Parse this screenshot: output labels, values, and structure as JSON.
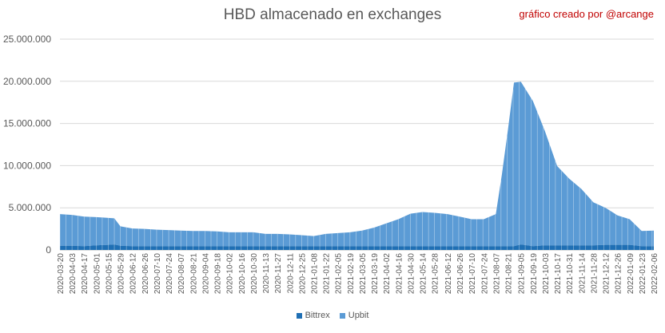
{
  "chart_data": {
    "type": "area",
    "stacked": true,
    "title": "HBD almacenado en exchanges",
    "watermark": "gráfico creado por @arcange",
    "ylim": [
      0,
      25000000
    ],
    "y_ticks": [
      "0",
      "5.000.000",
      "10.000.000",
      "15.000.000",
      "20.000.000",
      "25.000.000"
    ],
    "y_tick_values": [
      0,
      5000000,
      10000000,
      15000000,
      20000000,
      25000000
    ],
    "grid": true,
    "legend_position": "bottom",
    "x_tick_labels": [
      "2020-03-20",
      "2020-04-03",
      "2020-04-17",
      "2020-05-01",
      "2020-05-15",
      "2020-05-29",
      "2020-06-12",
      "2020-06-26",
      "2020-07-10",
      "2020-07-24",
      "2020-08-07",
      "2020-08-21",
      "2020-09-04",
      "2020-09-18",
      "2020-10-02",
      "2020-10-16",
      "2020-10-30",
      "2020-11-13",
      "2020-11-27",
      "2020-12-11",
      "2020-12-25",
      "2021-01-08",
      "2021-01-22",
      "2021-02-05",
      "2021-02-19",
      "2021-03-05",
      "2021-03-19",
      "2021-04-02",
      "2021-04-16",
      "2021-04-30",
      "2021-05-14",
      "2021-05-28",
      "2021-06-12",
      "2021-06-26",
      "2021-07-10",
      "2021-07-24",
      "2021-08-07",
      "2021-08-21",
      "2021-09-05",
      "2021-09-19",
      "2021-10-03",
      "2021-10-17",
      "2021-10-31",
      "2021-11-14",
      "2021-11-28",
      "2021-12-12",
      "2021-12-26",
      "2022-01-09",
      "2022-01-23",
      "2022-02-06"
    ],
    "x": [
      "2020-03-20",
      "2020-04-03",
      "2020-04-17",
      "2020-05-01",
      "2020-05-15",
      "2020-05-22",
      "2020-05-29",
      "2020-06-12",
      "2020-06-26",
      "2020-07-10",
      "2020-07-24",
      "2020-08-07",
      "2020-08-21",
      "2020-09-04",
      "2020-09-18",
      "2020-10-02",
      "2020-10-16",
      "2020-10-30",
      "2020-11-13",
      "2020-11-27",
      "2020-12-11",
      "2020-12-25",
      "2021-01-08",
      "2021-01-22",
      "2021-02-05",
      "2021-02-19",
      "2021-03-05",
      "2021-03-19",
      "2021-04-02",
      "2021-04-16",
      "2021-04-30",
      "2021-05-14",
      "2021-05-28",
      "2021-06-12",
      "2021-06-26",
      "2021-07-10",
      "2021-07-24",
      "2021-08-07",
      "2021-08-14",
      "2021-08-21",
      "2021-08-28",
      "2021-09-05",
      "2021-09-19",
      "2021-10-03",
      "2021-10-17",
      "2021-10-31",
      "2021-11-14",
      "2021-11-28",
      "2021-12-12",
      "2021-12-26",
      "2022-01-09",
      "2022-01-23",
      "2022-02-06"
    ],
    "series": [
      {
        "name": "Bittrex",
        "color": "#1f6fb4",
        "values": [
          500000,
          500000,
          450000,
          550000,
          600000,
          650000,
          500000,
          450000,
          450000,
          450000,
          450000,
          450000,
          450000,
          450000,
          450000,
          450000,
          450000,
          450000,
          450000,
          450000,
          450000,
          450000,
          450000,
          450000,
          450000,
          450000,
          450000,
          450000,
          450000,
          450000,
          450000,
          450000,
          450000,
          450000,
          450000,
          450000,
          450000,
          450000,
          450000,
          450000,
          450000,
          650000,
          450000,
          550000,
          550000,
          550000,
          550000,
          550000,
          600000,
          600000,
          600000,
          450000,
          450000
        ]
      },
      {
        "name": "Upbit",
        "color": "#5b9bd5",
        "values": [
          3750000,
          3650000,
          3500000,
          3350000,
          3200000,
          3100000,
          2300000,
          2100000,
          2050000,
          1950000,
          1900000,
          1850000,
          1800000,
          1800000,
          1750000,
          1650000,
          1650000,
          1650000,
          1450000,
          1450000,
          1400000,
          1300000,
          1200000,
          1450000,
          1550000,
          1650000,
          1850000,
          2200000,
          2700000,
          3200000,
          3850000,
          4050000,
          3950000,
          3800000,
          3500000,
          3200000,
          3200000,
          3800000,
          8500000,
          13800000,
          19400000,
          19300000,
          17200000,
          13500000,
          9400000,
          7900000,
          6700000,
          5100000,
          4400000,
          3500000,
          3050000,
          1800000,
          1850000
        ]
      }
    ]
  }
}
